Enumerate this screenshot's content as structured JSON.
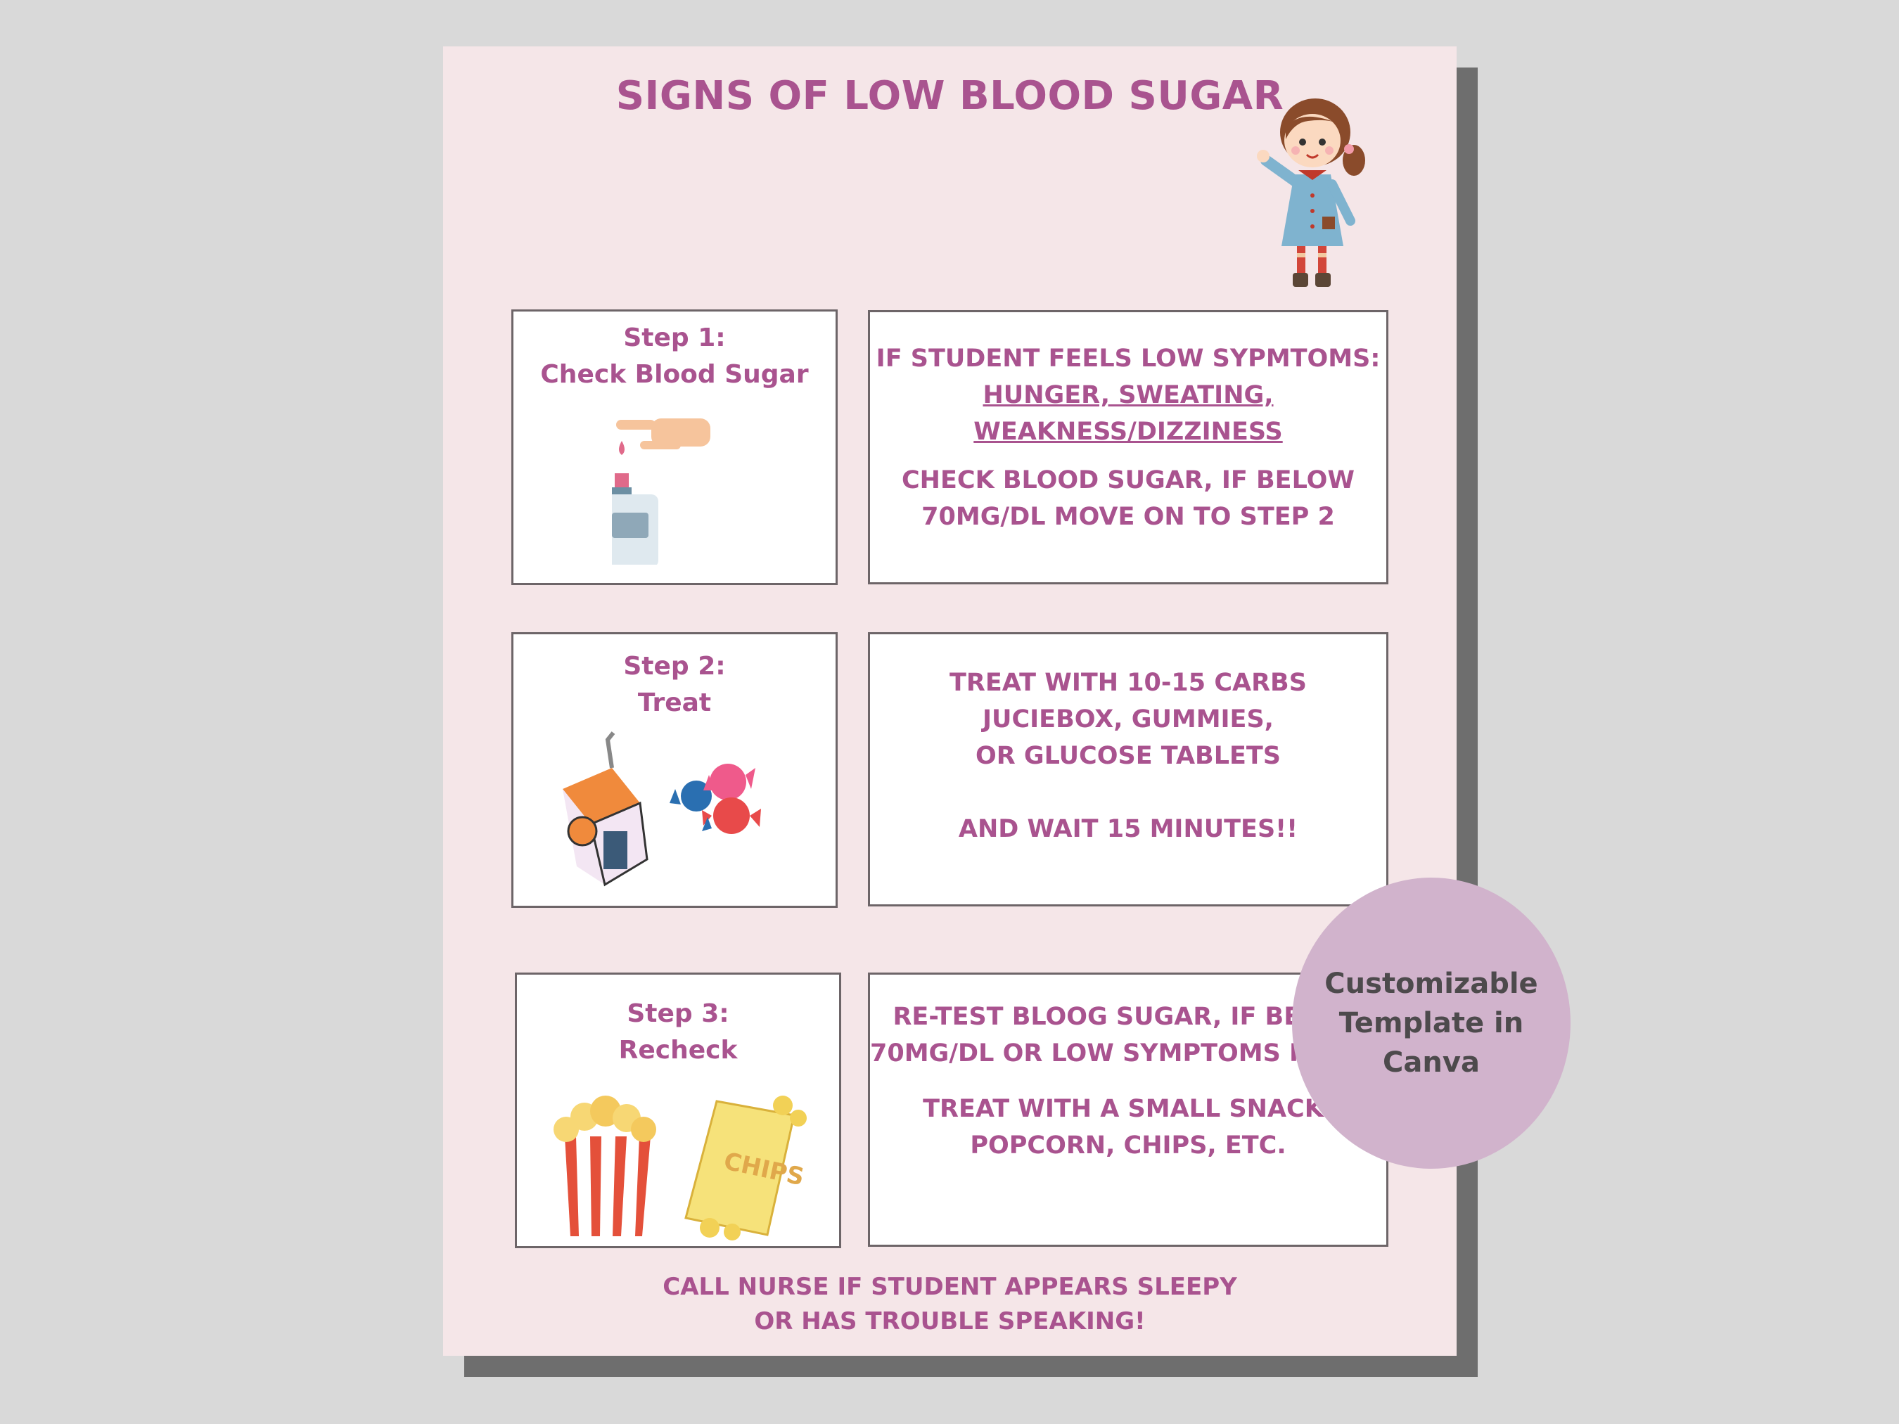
{
  "title": "SIGNS OF LOW BLOOD SUGAR",
  "steps": [
    {
      "label": "Step 1:",
      "name": "Check Blood Sugar",
      "icon": "glucose-meter-icon",
      "details": {
        "intro": "IF STUDENT FEELS LOW SYPMTOMS:",
        "symptoms_line1": "HUNGER, SWEATING,",
        "symptoms_line2": "WEAKNESS/DIZZINESS",
        "action_line1": "CHECK BLOOD SUGAR, IF BELOW",
        "action_line2": "70MG/DL MOVE ON TO STEP 2"
      }
    },
    {
      "label": "Step 2:",
      "name": "Treat",
      "icon": "juicebox-candy-icon",
      "details": {
        "line1": "TREAT WITH 10-15 CARBS",
        "line2": "JUCIEBOX, GUMMIES,",
        "line3": "OR GLUCOSE TABLETS",
        "line4": "AND WAIT 15 MINUTES!!"
      }
    },
    {
      "label": "Step 3:",
      "name": "Recheck",
      "icon": "popcorn-chips-icon",
      "chips_text": "CHIPS",
      "details": {
        "line1": "RE-TEST BLOOG SUGAR, IF BELOW",
        "line2": "70MG/DL OR LOW SYMPTOMS PERSIST",
        "line3": "TREAT WITH A SMALL SNACK:",
        "line4": "POPCORN, CHIPS, ETC."
      }
    }
  ],
  "footer_line1": "CALL NURSE IF STUDENT APPEARS SLEEPY",
  "footer_line2": "OR HAS TROUBLE SPEAKING!",
  "badge": {
    "line1": "Customizable",
    "line2": "Template in",
    "line3": "Canva"
  },
  "colors": {
    "accent": "#a9538f",
    "sheet": "#f5e6e8",
    "badge": "#d1b3cc"
  }
}
